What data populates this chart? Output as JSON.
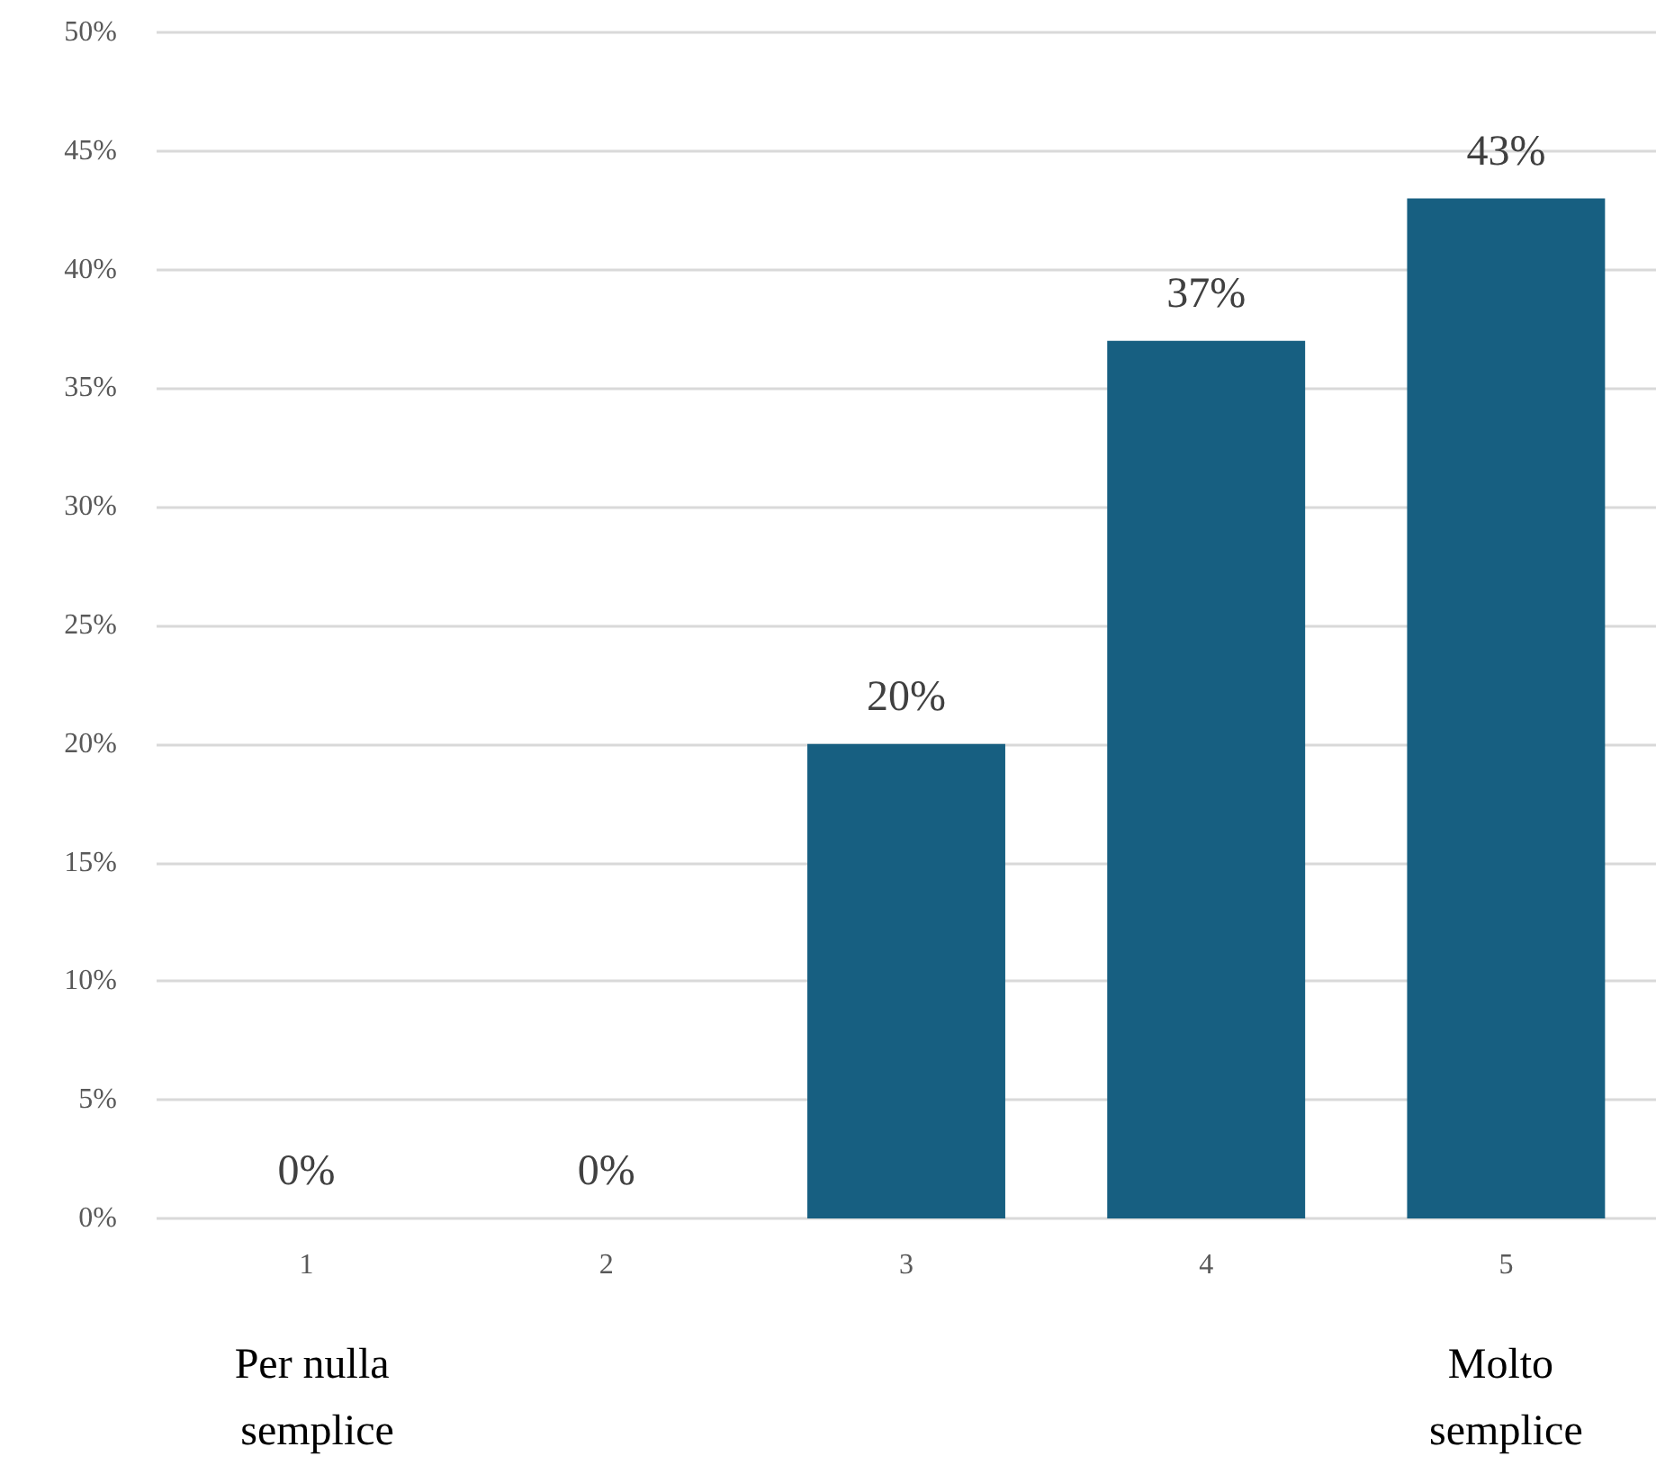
{
  "chart_data": {
    "type": "bar",
    "categories": [
      "1",
      "2",
      "3",
      "4",
      "5"
    ],
    "values": [
      0,
      0,
      20,
      37,
      43
    ],
    "color": "#175f81",
    "value_labels": [
      "0%",
      "0%",
      "20%",
      "37%",
      "43%"
    ],
    "ylim": [
      0,
      50
    ],
    "yticks": [
      {
        "value": 0,
        "label": "0%"
      },
      {
        "value": 5,
        "label": "5%"
      },
      {
        "value": 10,
        "label": "10%"
      },
      {
        "value": 15,
        "label": "15%"
      },
      {
        "value": 20,
        "label": "20%"
      },
      {
        "value": 25,
        "label": "25%"
      },
      {
        "value": 30,
        "label": "30%"
      },
      {
        "value": 35,
        "label": "35%"
      },
      {
        "value": 40,
        "label": "40%"
      },
      {
        "value": 45,
        "label": "45%"
      },
      {
        "value": 50,
        "label": "50%"
      }
    ],
    "grid": "y",
    "annotations": [
      "Per nulla semplice",
      "Molto semplice"
    ]
  }
}
